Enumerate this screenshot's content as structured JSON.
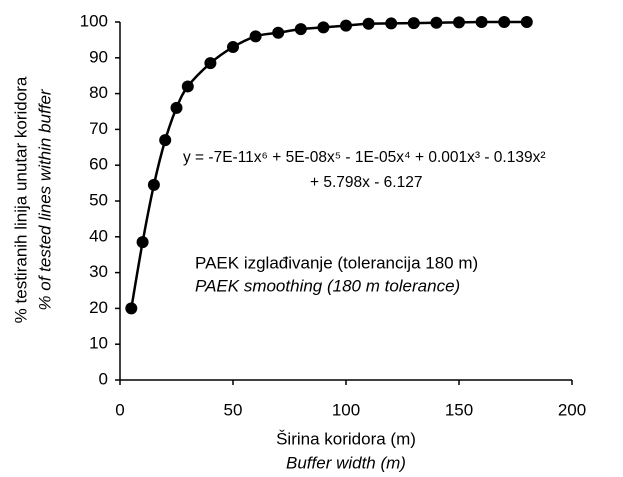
{
  "chart_data": {
    "type": "scatter",
    "x_label": [
      "Širina koridora (m)",
      "Buffer width (m)"
    ],
    "y_label": [
      "% testiranih linija unutar koridora",
      "% of tested lines within buffer"
    ],
    "annotations": [
      "y = -7E-11x⁶ + 5E-08x⁵ - 1E-05x⁴ + 0.001x³ - 0.139x²",
      "+ 5.798x - 6.127",
      "PAEK izglađivanje (tolerancija 180 m)",
      "PAEK smoothing (180 m tolerance)"
    ],
    "color": "#000000",
    "x": [
      5,
      10,
      15,
      20,
      25,
      30,
      40,
      50,
      60,
      70,
      80,
      90,
      100,
      110,
      120,
      130,
      140,
      150,
      160,
      170,
      180
    ],
    "values": [
      20,
      38.5,
      54.5,
      67,
      76,
      82,
      88.5,
      93,
      96,
      97,
      98,
      98.5,
      99,
      99.5,
      99.6,
      99.7,
      99.8,
      99.9,
      100,
      100,
      100
    ],
    "xlim": [
      0,
      200
    ],
    "xticks": [
      0,
      50,
      100,
      150,
      200
    ],
    "ylim": [
      0,
      100
    ],
    "yticks": [
      0,
      10,
      20,
      30,
      40,
      50,
      60,
      70,
      80,
      90,
      100
    ],
    "grid": false,
    "trendline": true
  }
}
